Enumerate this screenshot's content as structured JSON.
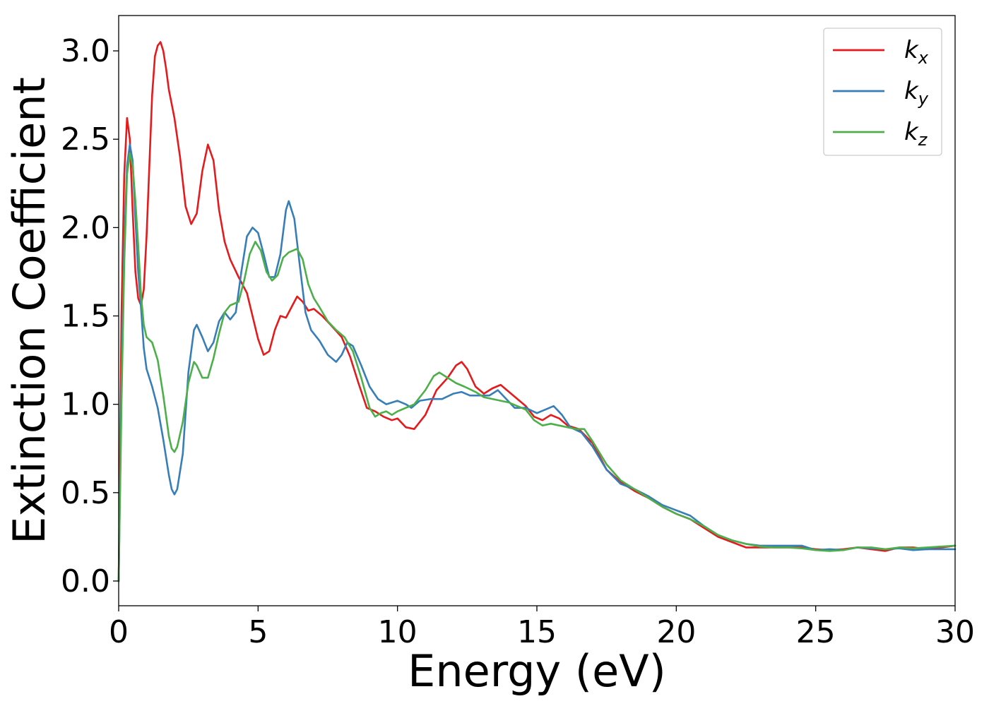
{
  "chart_data": {
    "type": "line",
    "title": "",
    "xlabel": "Energy (eV)",
    "ylabel": "Extinction Coefficient",
    "xlim": [
      0,
      30
    ],
    "ylim": [
      -0.14,
      3.2
    ],
    "xticks": [
      "0",
      "5",
      "10",
      "15",
      "20",
      "25",
      "30"
    ],
    "yticks": [
      "0.0",
      "0.5",
      "1.0",
      "1.5",
      "2.0",
      "2.5",
      "3.0"
    ],
    "grid": false,
    "legend_position": "top-right",
    "series": [
      {
        "name": "k",
        "subscript": "x",
        "color": "#e41a1c",
        "points": [
          [
            0,
            0
          ],
          [
            0.1,
            1.5
          ],
          [
            0.2,
            2.3
          ],
          [
            0.3,
            2.62
          ],
          [
            0.4,
            2.5
          ],
          [
            0.5,
            2.1
          ],
          [
            0.6,
            1.75
          ],
          [
            0.7,
            1.6
          ],
          [
            0.8,
            1.56
          ],
          [
            0.9,
            1.65
          ],
          [
            1.0,
            1.95
          ],
          [
            1.1,
            2.35
          ],
          [
            1.2,
            2.75
          ],
          [
            1.3,
            2.97
          ],
          [
            1.4,
            3.03
          ],
          [
            1.5,
            3.05
          ],
          [
            1.6,
            3.0
          ],
          [
            1.7,
            2.9
          ],
          [
            1.8,
            2.78
          ],
          [
            2.0,
            2.62
          ],
          [
            2.2,
            2.4
          ],
          [
            2.4,
            2.12
          ],
          [
            2.6,
            2.02
          ],
          [
            2.8,
            2.08
          ],
          [
            3.0,
            2.32
          ],
          [
            3.2,
            2.47
          ],
          [
            3.4,
            2.38
          ],
          [
            3.6,
            2.1
          ],
          [
            3.8,
            1.92
          ],
          [
            4.0,
            1.82
          ],
          [
            4.3,
            1.72
          ],
          [
            4.6,
            1.63
          ],
          [
            4.8,
            1.5
          ],
          [
            5.0,
            1.37
          ],
          [
            5.2,
            1.28
          ],
          [
            5.4,
            1.3
          ],
          [
            5.6,
            1.42
          ],
          [
            5.8,
            1.5
          ],
          [
            6.0,
            1.49
          ],
          [
            6.2,
            1.55
          ],
          [
            6.4,
            1.61
          ],
          [
            6.6,
            1.58
          ],
          [
            6.8,
            1.53
          ],
          [
            7.0,
            1.54
          ],
          [
            7.3,
            1.5
          ],
          [
            7.6,
            1.45
          ],
          [
            8.0,
            1.38
          ],
          [
            8.3,
            1.27
          ],
          [
            8.6,
            1.12
          ],
          [
            8.9,
            0.98
          ],
          [
            9.2,
            0.96
          ],
          [
            9.5,
            0.93
          ],
          [
            9.8,
            0.91
          ],
          [
            10.0,
            0.92
          ],
          [
            10.3,
            0.87
          ],
          [
            10.6,
            0.86
          ],
          [
            11.0,
            0.94
          ],
          [
            11.4,
            1.08
          ],
          [
            11.8,
            1.15
          ],
          [
            12.1,
            1.22
          ],
          [
            12.3,
            1.24
          ],
          [
            12.5,
            1.2
          ],
          [
            12.8,
            1.1
          ],
          [
            13.1,
            1.06
          ],
          [
            13.4,
            1.09
          ],
          [
            13.7,
            1.11
          ],
          [
            14.0,
            1.07
          ],
          [
            14.3,
            1.03
          ],
          [
            14.6,
            0.99
          ],
          [
            14.9,
            0.93
          ],
          [
            15.2,
            0.91
          ],
          [
            15.5,
            0.94
          ],
          [
            15.8,
            0.92
          ],
          [
            16.1,
            0.88
          ],
          [
            16.5,
            0.86
          ],
          [
            17.0,
            0.78
          ],
          [
            17.5,
            0.63
          ],
          [
            18.0,
            0.56
          ],
          [
            18.5,
            0.51
          ],
          [
            19.0,
            0.47
          ],
          [
            19.5,
            0.42
          ],
          [
            20.0,
            0.38
          ],
          [
            20.5,
            0.35
          ],
          [
            21.0,
            0.3
          ],
          [
            21.5,
            0.25
          ],
          [
            22.0,
            0.22
          ],
          [
            22.5,
            0.19
          ],
          [
            23.0,
            0.19
          ],
          [
            23.5,
            0.19
          ],
          [
            24.0,
            0.19
          ],
          [
            24.5,
            0.19
          ],
          [
            25.0,
            0.18
          ],
          [
            25.5,
            0.175
          ],
          [
            26.0,
            0.18
          ],
          [
            26.5,
            0.19
          ],
          [
            27.0,
            0.18
          ],
          [
            27.5,
            0.17
          ],
          [
            28.0,
            0.19
          ],
          [
            28.5,
            0.19
          ],
          [
            29.0,
            0.18
          ],
          [
            29.5,
            0.19
          ],
          [
            30.0,
            0.2
          ]
        ]
      },
      {
        "name": "k",
        "subscript": "y",
        "color": "#377eb8",
        "points": [
          [
            0,
            0
          ],
          [
            0.1,
            1.1
          ],
          [
            0.2,
            1.9
          ],
          [
            0.3,
            2.35
          ],
          [
            0.4,
            2.47
          ],
          [
            0.5,
            2.38
          ],
          [
            0.6,
            2.05
          ],
          [
            0.7,
            1.75
          ],
          [
            0.8,
            1.55
          ],
          [
            0.9,
            1.32
          ],
          [
            1.0,
            1.2
          ],
          [
            1.2,
            1.1
          ],
          [
            1.4,
            0.98
          ],
          [
            1.6,
            0.8
          ],
          [
            1.8,
            0.6
          ],
          [
            1.9,
            0.52
          ],
          [
            2.0,
            0.49
          ],
          [
            2.1,
            0.52
          ],
          [
            2.3,
            0.72
          ],
          [
            2.5,
            1.18
          ],
          [
            2.7,
            1.42
          ],
          [
            2.8,
            1.45
          ],
          [
            3.0,
            1.38
          ],
          [
            3.2,
            1.3
          ],
          [
            3.4,
            1.35
          ],
          [
            3.6,
            1.47
          ],
          [
            3.8,
            1.52
          ],
          [
            4.0,
            1.48
          ],
          [
            4.2,
            1.52
          ],
          [
            4.4,
            1.75
          ],
          [
            4.6,
            1.95
          ],
          [
            4.8,
            2.0
          ],
          [
            5.0,
            1.97
          ],
          [
            5.2,
            1.85
          ],
          [
            5.4,
            1.72
          ],
          [
            5.6,
            1.72
          ],
          [
            5.8,
            1.85
          ],
          [
            6.0,
            2.1
          ],
          [
            6.1,
            2.15
          ],
          [
            6.3,
            2.05
          ],
          [
            6.5,
            1.78
          ],
          [
            6.7,
            1.52
          ],
          [
            6.9,
            1.42
          ],
          [
            7.2,
            1.36
          ],
          [
            7.5,
            1.28
          ],
          [
            7.8,
            1.24
          ],
          [
            8.0,
            1.28
          ],
          [
            8.2,
            1.35
          ],
          [
            8.4,
            1.33
          ],
          [
            8.7,
            1.22
          ],
          [
            9.0,
            1.1
          ],
          [
            9.3,
            1.03
          ],
          [
            9.6,
            1.0
          ],
          [
            10.0,
            1.02
          ],
          [
            10.3,
            1.0
          ],
          [
            10.5,
            0.98
          ],
          [
            10.8,
            1.02
          ],
          [
            11.2,
            1.03
          ],
          [
            11.6,
            1.03
          ],
          [
            12.0,
            1.06
          ],
          [
            12.3,
            1.07
          ],
          [
            12.6,
            1.05
          ],
          [
            13.0,
            1.05
          ],
          [
            13.3,
            1.05
          ],
          [
            13.6,
            1.08
          ],
          [
            13.9,
            1.03
          ],
          [
            14.2,
            0.98
          ],
          [
            14.6,
            0.98
          ],
          [
            15.0,
            0.95
          ],
          [
            15.3,
            0.97
          ],
          [
            15.6,
            0.99
          ],
          [
            15.9,
            0.94
          ],
          [
            16.2,
            0.87
          ],
          [
            16.6,
            0.84
          ],
          [
            17.0,
            0.76
          ],
          [
            17.5,
            0.63
          ],
          [
            18.0,
            0.55
          ],
          [
            18.5,
            0.52
          ],
          [
            19.0,
            0.48
          ],
          [
            19.5,
            0.43
          ],
          [
            20.0,
            0.4
          ],
          [
            20.5,
            0.37
          ],
          [
            21.0,
            0.31
          ],
          [
            21.5,
            0.26
          ],
          [
            22.0,
            0.23
          ],
          [
            22.5,
            0.21
          ],
          [
            23.0,
            0.2
          ],
          [
            23.5,
            0.2
          ],
          [
            24.0,
            0.2
          ],
          [
            24.5,
            0.2
          ],
          [
            25.0,
            0.175
          ],
          [
            25.5,
            0.18
          ],
          [
            26.0,
            0.175
          ],
          [
            26.5,
            0.19
          ],
          [
            27.0,
            0.185
          ],
          [
            27.5,
            0.18
          ],
          [
            28.0,
            0.185
          ],
          [
            28.5,
            0.175
          ],
          [
            29.0,
            0.18
          ],
          [
            29.5,
            0.18
          ],
          [
            30.0,
            0.18
          ]
        ]
      },
      {
        "name": "k",
        "subscript": "z",
        "color": "#4daf4a",
        "points": [
          [
            0,
            0
          ],
          [
            0.1,
            1.0
          ],
          [
            0.2,
            1.8
          ],
          [
            0.3,
            2.3
          ],
          [
            0.4,
            2.42
          ],
          [
            0.5,
            2.35
          ],
          [
            0.6,
            2.15
          ],
          [
            0.7,
            1.9
          ],
          [
            0.8,
            1.62
          ],
          [
            0.9,
            1.45
          ],
          [
            1.0,
            1.38
          ],
          [
            1.2,
            1.35
          ],
          [
            1.4,
            1.25
          ],
          [
            1.6,
            1.05
          ],
          [
            1.8,
            0.82
          ],
          [
            1.9,
            0.75
          ],
          [
            2.0,
            0.73
          ],
          [
            2.1,
            0.76
          ],
          [
            2.3,
            0.9
          ],
          [
            2.5,
            1.12
          ],
          [
            2.7,
            1.24
          ],
          [
            2.8,
            1.22
          ],
          [
            3.0,
            1.15
          ],
          [
            3.2,
            1.15
          ],
          [
            3.4,
            1.26
          ],
          [
            3.6,
            1.4
          ],
          [
            3.8,
            1.52
          ],
          [
            4.0,
            1.56
          ],
          [
            4.3,
            1.58
          ],
          [
            4.5,
            1.7
          ],
          [
            4.7,
            1.85
          ],
          [
            4.9,
            1.92
          ],
          [
            5.1,
            1.87
          ],
          [
            5.3,
            1.75
          ],
          [
            5.5,
            1.7
          ],
          [
            5.7,
            1.73
          ],
          [
            5.9,
            1.83
          ],
          [
            6.1,
            1.86
          ],
          [
            6.4,
            1.88
          ],
          [
            6.6,
            1.82
          ],
          [
            6.8,
            1.68
          ],
          [
            7.0,
            1.6
          ],
          [
            7.2,
            1.55
          ],
          [
            7.5,
            1.47
          ],
          [
            7.8,
            1.42
          ],
          [
            8.1,
            1.38
          ],
          [
            8.4,
            1.3
          ],
          [
            8.7,
            1.15
          ],
          [
            9.0,
            0.98
          ],
          [
            9.2,
            0.93
          ],
          [
            9.4,
            0.95
          ],
          [
            9.6,
            0.96
          ],
          [
            9.8,
            0.94
          ],
          [
            10.0,
            0.96
          ],
          [
            10.3,
            0.98
          ],
          [
            10.6,
            1.0
          ],
          [
            11.0,
            1.08
          ],
          [
            11.3,
            1.16
          ],
          [
            11.5,
            1.18
          ],
          [
            11.8,
            1.15
          ],
          [
            12.1,
            1.12
          ],
          [
            12.4,
            1.1
          ],
          [
            12.8,
            1.07
          ],
          [
            13.1,
            1.04
          ],
          [
            13.4,
            1.03
          ],
          [
            13.7,
            1.02
          ],
          [
            14.0,
            1.01
          ],
          [
            14.3,
            0.99
          ],
          [
            14.6,
            0.97
          ],
          [
            14.9,
            0.91
          ],
          [
            15.2,
            0.88
          ],
          [
            15.5,
            0.89
          ],
          [
            15.8,
            0.88
          ],
          [
            16.1,
            0.87
          ],
          [
            16.4,
            0.86
          ],
          [
            16.7,
            0.86
          ],
          [
            17.0,
            0.79
          ],
          [
            17.5,
            0.66
          ],
          [
            18.0,
            0.57
          ],
          [
            18.5,
            0.52
          ],
          [
            19.0,
            0.47
          ],
          [
            19.5,
            0.42
          ],
          [
            20.0,
            0.38
          ],
          [
            20.5,
            0.35
          ],
          [
            21.0,
            0.31
          ],
          [
            21.5,
            0.26
          ],
          [
            22.0,
            0.23
          ],
          [
            22.5,
            0.21
          ],
          [
            23.0,
            0.195
          ],
          [
            23.5,
            0.19
          ],
          [
            24.0,
            0.19
          ],
          [
            24.5,
            0.185
          ],
          [
            25.0,
            0.175
          ],
          [
            25.5,
            0.17
          ],
          [
            26.0,
            0.175
          ],
          [
            26.5,
            0.19
          ],
          [
            27.0,
            0.19
          ],
          [
            27.5,
            0.18
          ],
          [
            28.0,
            0.19
          ],
          [
            28.5,
            0.185
          ],
          [
            29.0,
            0.19
          ],
          [
            29.5,
            0.195
          ],
          [
            30.0,
            0.2
          ]
        ]
      }
    ]
  }
}
